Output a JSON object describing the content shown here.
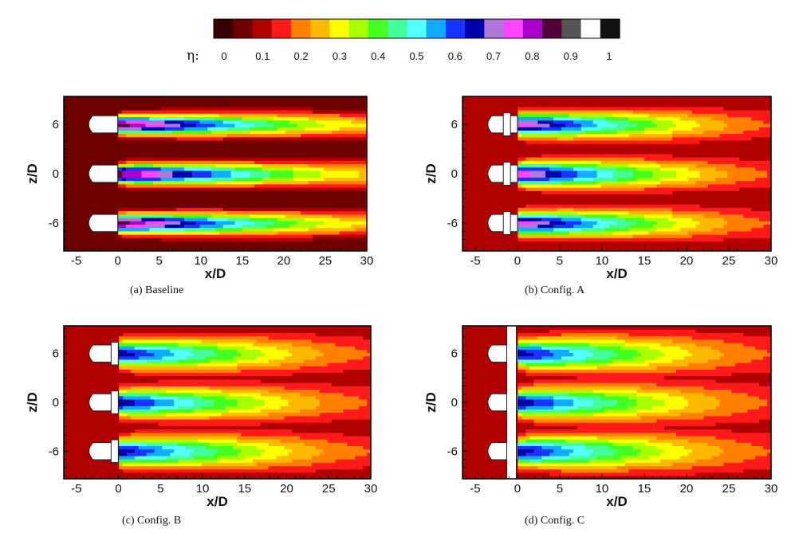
{
  "colorbar": {
    "symbol": "η:",
    "colors": [
      "#3a0000",
      "#6e0000",
      "#b00000",
      "#ff1a1a",
      "#ff7f00",
      "#ffb800",
      "#ffff00",
      "#a8ff00",
      "#44ff22",
      "#44ff99",
      "#55ffff",
      "#11aaff",
      "#1a33ff",
      "#0000aa",
      "#b077d9",
      "#ff44ff",
      "#aa00cc",
      "#55003a",
      "#555555",
      "#ffffff",
      "#111111"
    ],
    "tick_labels": [
      "0",
      "0.1",
      "0.2",
      "0.3",
      "0.4",
      "0.5",
      "0.6",
      "0.7",
      "0.8",
      "0.9",
      "1"
    ]
  },
  "chart_data": [
    {
      "type": "heatmap",
      "caption": "(a)  Baseline",
      "xlabel": "x/D",
      "ylabel": "z/D",
      "xticks": [
        "-5",
        "0",
        "5",
        "10",
        "15",
        "20",
        "25",
        "30"
      ],
      "yticks": [
        "6",
        "0",
        "-6"
      ],
      "xlim": [
        -6.5,
        30
      ],
      "ylim": [
        -9.4,
        9.4
      ],
      "jets_z": [
        6,
        0,
        -6
      ],
      "core_value": 0.9,
      "trailing_edge_x": 30,
      "value_at_trailing_edge": 0.3,
      "wake_halfwidth_start": 1.0,
      "wake_halfwidth_end": 1.5,
      "trench": false,
      "inlet_value": 0.05
    },
    {
      "type": "heatmap",
      "caption": "(b)  Config.  A",
      "xlabel": "x/D",
      "ylabel": "z/D",
      "xticks": [
        "-5",
        "0",
        "5",
        "10",
        "15",
        "20",
        "25",
        "30"
      ],
      "yticks": [
        "6",
        "0",
        "-6"
      ],
      "xlim": [
        -6.5,
        30
      ],
      "ylim": [
        -9.4,
        9.4
      ],
      "jets_z": [
        6,
        0,
        -6
      ],
      "core_value": 0.8,
      "trailing_edge_x": 30,
      "value_at_trailing_edge": 0.2,
      "wake_halfwidth_start": 1.2,
      "wake_halfwidth_end": 1.9,
      "trench": false,
      "inlet_value": 0.1
    },
    {
      "type": "heatmap",
      "caption": "(c)  Config.  B",
      "xlabel": "x/D",
      "ylabel": "z/D",
      "xticks": [
        "-5",
        "0",
        "5",
        "10",
        "15",
        "20",
        "25",
        "30"
      ],
      "yticks": [
        "6",
        "0",
        "-6"
      ],
      "xlim": [
        -6.5,
        30
      ],
      "ylim": [
        -9.4,
        9.4
      ],
      "jets_z": [
        6,
        0,
        -6
      ],
      "core_value": 0.7,
      "trailing_edge_x": 30,
      "value_at_trailing_edge": 0.2,
      "wake_halfwidth_start": 1.4,
      "wake_halfwidth_end": 2.3,
      "trench": false,
      "inlet_value": 0.1
    },
    {
      "type": "heatmap",
      "caption": "(d)  Config.  C",
      "xlabel": "x/D",
      "ylabel": "z/D",
      "xticks": [
        "-5",
        "0",
        "5",
        "10",
        "15",
        "20",
        "25",
        "30"
      ],
      "yticks": [
        "6",
        "0",
        "-6"
      ],
      "xlim": [
        -6.5,
        30
      ],
      "ylim": [
        -9.4,
        9.4
      ],
      "jets_z": [
        6,
        0,
        -6
      ],
      "core_value": 0.7,
      "trailing_edge_x": 30,
      "value_at_trailing_edge": 0.2,
      "wake_halfwidth_start": 1.4,
      "wake_halfwidth_end": 2.6,
      "trench": true,
      "inlet_value": 0.1
    }
  ]
}
